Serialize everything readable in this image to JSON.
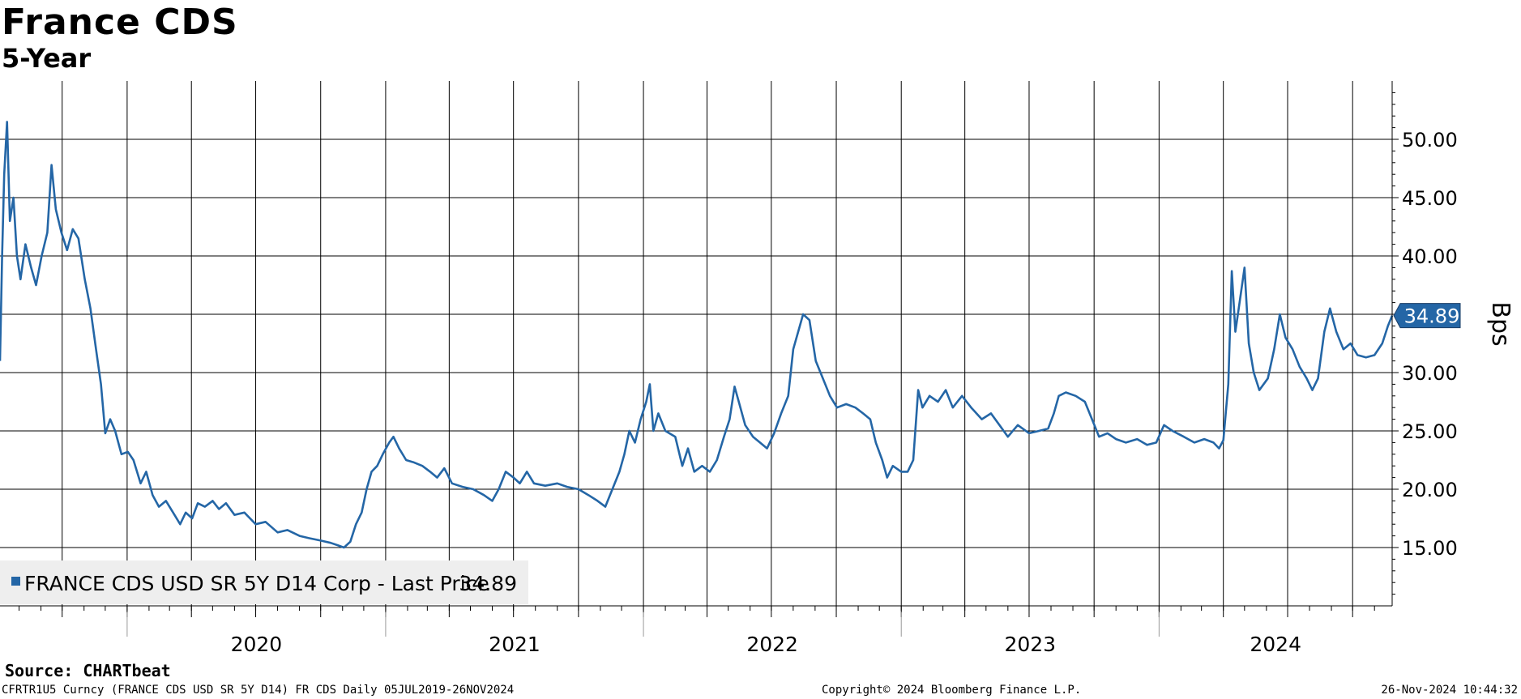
{
  "header": {
    "title": "France CDS",
    "subtitle": "5-Year"
  },
  "footer": {
    "source": "Source: CHARTbeat",
    "ticker_info": "CFRTR1U5 Curncy (FRANCE CDS USD SR 5Y D14) FR CDS  Daily 05JUL2019-26NOV2024",
    "copyright": "Copyright© 2024 Bloomberg Finance L.P.",
    "timestamp": "26-Nov-2024 10:44:32"
  },
  "colors": {
    "series": "#2466a6",
    "grid": "#000000",
    "legend_bg": "#eeeeee",
    "last_price_box": "#2466a6"
  },
  "chart_data": {
    "type": "line",
    "title": "France CDS",
    "subtitle": "5-Year",
    "ylabel": "Bps",
    "xlim": [
      "2019-07-05",
      "2024-11-26"
    ],
    "ylim": [
      10,
      55
    ],
    "yticks": [
      "15.00",
      "20.00",
      "25.00",
      "30.00",
      "35.00",
      "40.00",
      "45.00",
      "50.00"
    ],
    "xtick_labels": [
      "2020",
      "2021",
      "2022",
      "2023",
      "2024"
    ],
    "grid": true,
    "legend_position": "bottom-left",
    "legend": "FRANCE CDS USD SR 5Y D14 Corp - Last Price",
    "last_value_label": "34.89",
    "series": [
      {
        "name": "FRANCE CDS USD SR 5Y D14 Corp - Last Price",
        "last_value": "34.89",
        "points": [
          [
            "2019-07-05",
            31.0
          ],
          [
            "2019-07-08",
            40.0
          ],
          [
            "2019-07-11",
            47.0
          ],
          [
            "2019-07-15",
            51.5
          ],
          [
            "2019-07-19",
            43.0
          ],
          [
            "2019-07-24",
            45.0
          ],
          [
            "2019-07-29",
            40.0
          ],
          [
            "2019-08-03",
            38.0
          ],
          [
            "2019-08-10",
            41.0
          ],
          [
            "2019-08-18",
            39.0
          ],
          [
            "2019-08-25",
            37.5
          ],
          [
            "2019-09-02",
            40.0
          ],
          [
            "2019-09-10",
            42.0
          ],
          [
            "2019-09-16",
            47.8
          ],
          [
            "2019-09-22",
            44.0
          ],
          [
            "2019-09-30",
            42.0
          ],
          [
            "2019-10-08",
            40.5
          ],
          [
            "2019-10-16",
            42.3
          ],
          [
            "2019-10-24",
            41.5
          ],
          [
            "2019-11-02",
            38.0
          ],
          [
            "2019-11-10",
            35.5
          ],
          [
            "2019-11-18",
            32.0
          ],
          [
            "2019-11-25",
            29.0
          ],
          [
            "2019-12-01",
            24.8
          ],
          [
            "2019-12-08",
            26.0
          ],
          [
            "2019-12-15",
            25.0
          ],
          [
            "2019-12-24",
            23.0
          ],
          [
            "2020-01-02",
            23.2
          ],
          [
            "2020-01-10",
            22.5
          ],
          [
            "2020-01-20",
            20.5
          ],
          [
            "2020-01-28",
            21.5
          ],
          [
            "2020-02-06",
            19.5
          ],
          [
            "2020-02-15",
            18.5
          ],
          [
            "2020-02-25",
            19.0
          ],
          [
            "2020-03-06",
            18.0
          ],
          [
            "2020-03-16",
            17.0
          ],
          [
            "2020-03-24",
            18.0
          ],
          [
            "2020-04-02",
            17.5
          ],
          [
            "2020-04-10",
            18.8
          ],
          [
            "2020-04-20",
            18.5
          ],
          [
            "2020-05-01",
            19.0
          ],
          [
            "2020-05-10",
            18.3
          ],
          [
            "2020-05-20",
            18.8
          ],
          [
            "2020-06-01",
            17.8
          ],
          [
            "2020-06-15",
            18.0
          ],
          [
            "2020-07-01",
            17.0
          ],
          [
            "2020-07-15",
            17.2
          ],
          [
            "2020-08-01",
            16.3
          ],
          [
            "2020-08-15",
            16.5
          ],
          [
            "2020-09-01",
            16.0
          ],
          [
            "2020-09-15",
            15.8
          ],
          [
            "2020-10-01",
            15.6
          ],
          [
            "2020-10-15",
            15.4
          ],
          [
            "2020-10-25",
            15.2
          ],
          [
            "2020-11-03",
            15.0
          ],
          [
            "2020-11-12",
            15.5
          ],
          [
            "2020-11-20",
            17.0
          ],
          [
            "2020-11-28",
            18.0
          ],
          [
            "2020-12-05",
            20.0
          ],
          [
            "2020-12-12",
            21.5
          ],
          [
            "2020-12-20",
            22.0
          ],
          [
            "2020-12-28",
            23.0
          ],
          [
            "2021-01-06",
            24.0
          ],
          [
            "2021-01-12",
            24.5
          ],
          [
            "2021-01-20",
            23.5
          ],
          [
            "2021-01-30",
            22.5
          ],
          [
            "2021-02-10",
            22.3
          ],
          [
            "2021-02-22",
            22.0
          ],
          [
            "2021-03-05",
            21.5
          ],
          [
            "2021-03-15",
            21.0
          ],
          [
            "2021-03-25",
            21.8
          ],
          [
            "2021-04-05",
            20.5
          ],
          [
            "2021-04-20",
            20.2
          ],
          [
            "2021-05-05",
            20.0
          ],
          [
            "2021-05-20",
            19.5
          ],
          [
            "2021-06-01",
            19.0
          ],
          [
            "2021-06-10",
            20.0
          ],
          [
            "2021-06-20",
            21.5
          ],
          [
            "2021-07-01",
            21.0
          ],
          [
            "2021-07-10",
            20.5
          ],
          [
            "2021-07-20",
            21.5
          ],
          [
            "2021-07-30",
            20.5
          ],
          [
            "2021-08-15",
            20.3
          ],
          [
            "2021-09-01",
            20.5
          ],
          [
            "2021-09-15",
            20.2
          ],
          [
            "2021-10-01",
            20.0
          ],
          [
            "2021-10-15",
            19.5
          ],
          [
            "2021-10-28",
            19.0
          ],
          [
            "2021-11-08",
            18.5
          ],
          [
            "2021-11-18",
            20.0
          ],
          [
            "2021-11-28",
            21.5
          ],
          [
            "2021-12-05",
            23.0
          ],
          [
            "2021-12-12",
            25.0
          ],
          [
            "2021-12-20",
            24.0
          ],
          [
            "2021-12-28",
            26.0
          ],
          [
            "2022-01-05",
            27.5
          ],
          [
            "2022-01-10",
            29.0
          ],
          [
            "2022-01-15",
            25.0
          ],
          [
            "2022-01-22",
            26.5
          ],
          [
            "2022-02-01",
            25.0
          ],
          [
            "2022-02-15",
            24.5
          ],
          [
            "2022-02-25",
            22.0
          ],
          [
            "2022-03-05",
            23.5
          ],
          [
            "2022-03-14",
            21.5
          ],
          [
            "2022-03-25",
            22.0
          ],
          [
            "2022-04-05",
            21.5
          ],
          [
            "2022-04-15",
            22.5
          ],
          [
            "2022-04-25",
            24.5
          ],
          [
            "2022-05-03",
            26.0
          ],
          [
            "2022-05-10",
            28.8
          ],
          [
            "2022-05-16",
            27.5
          ],
          [
            "2022-05-25",
            25.5
          ],
          [
            "2022-06-05",
            24.5
          ],
          [
            "2022-06-15",
            24.0
          ],
          [
            "2022-06-25",
            23.5
          ],
          [
            "2022-07-05",
            24.8
          ],
          [
            "2022-07-15",
            26.5
          ],
          [
            "2022-07-25",
            28.0
          ],
          [
            "2022-08-01",
            32.0
          ],
          [
            "2022-08-08",
            33.5
          ],
          [
            "2022-08-15",
            35.0
          ],
          [
            "2022-08-24",
            34.5
          ],
          [
            "2022-09-02",
            31.0
          ],
          [
            "2022-09-12",
            29.5
          ],
          [
            "2022-09-22",
            28.0
          ],
          [
            "2022-10-02",
            27.0
          ],
          [
            "2022-10-15",
            27.3
          ],
          [
            "2022-10-28",
            27.0
          ],
          [
            "2022-11-08",
            26.5
          ],
          [
            "2022-11-18",
            26.0
          ],
          [
            "2022-11-26",
            24.0
          ],
          [
            "2022-12-05",
            22.5
          ],
          [
            "2022-12-12",
            21.0
          ],
          [
            "2022-12-20",
            22.0
          ],
          [
            "2023-01-01",
            21.5
          ],
          [
            "2023-01-10",
            21.5
          ],
          [
            "2023-01-18",
            22.5
          ],
          [
            "2023-01-25",
            28.5
          ],
          [
            "2023-01-31",
            27.0
          ],
          [
            "2023-02-10",
            28.0
          ],
          [
            "2023-02-22",
            27.5
          ],
          [
            "2023-03-05",
            28.5
          ],
          [
            "2023-03-15",
            27.0
          ],
          [
            "2023-03-28",
            28.0
          ],
          [
            "2023-04-10",
            27.0
          ],
          [
            "2023-04-25",
            26.0
          ],
          [
            "2023-05-08",
            26.5
          ],
          [
            "2023-05-20",
            25.5
          ],
          [
            "2023-06-01",
            24.5
          ],
          [
            "2023-06-15",
            25.5
          ],
          [
            "2023-07-01",
            24.8
          ],
          [
            "2023-07-15",
            25.0
          ],
          [
            "2023-07-28",
            25.2
          ],
          [
            "2023-08-05",
            26.5
          ],
          [
            "2023-08-12",
            28.0
          ],
          [
            "2023-08-22",
            28.3
          ],
          [
            "2023-09-05",
            28.0
          ],
          [
            "2023-09-18",
            27.5
          ],
          [
            "2023-09-28",
            26.0
          ],
          [
            "2023-10-08",
            24.5
          ],
          [
            "2023-10-20",
            24.8
          ],
          [
            "2023-11-01",
            24.3
          ],
          [
            "2023-11-15",
            24.0
          ],
          [
            "2023-12-01",
            24.3
          ],
          [
            "2023-12-15",
            23.8
          ],
          [
            "2023-12-28",
            24.0
          ],
          [
            "2024-01-08",
            25.5
          ],
          [
            "2024-01-20",
            25.0
          ],
          [
            "2024-02-05",
            24.5
          ],
          [
            "2024-02-20",
            24.0
          ],
          [
            "2024-03-05",
            24.3
          ],
          [
            "2024-03-18",
            24.0
          ],
          [
            "2024-03-26",
            23.5
          ],
          [
            "2024-04-01",
            24.2
          ],
          [
            "2024-04-08",
            29.0
          ],
          [
            "2024-04-13",
            38.7
          ],
          [
            "2024-04-18",
            33.5
          ],
          [
            "2024-04-24",
            36.0
          ],
          [
            "2024-05-01",
            39.0
          ],
          [
            "2024-05-07",
            32.5
          ],
          [
            "2024-05-14",
            30.0
          ],
          [
            "2024-05-22",
            28.5
          ],
          [
            "2024-06-03",
            29.5
          ],
          [
            "2024-06-12",
            32.0
          ],
          [
            "2024-06-20",
            35.0
          ],
          [
            "2024-06-28",
            33.0
          ],
          [
            "2024-07-08",
            32.0
          ],
          [
            "2024-07-18",
            30.5
          ],
          [
            "2024-07-28",
            29.5
          ],
          [
            "2024-08-05",
            28.5
          ],
          [
            "2024-08-13",
            29.5
          ],
          [
            "2024-08-22",
            33.5
          ],
          [
            "2024-08-30",
            35.5
          ],
          [
            "2024-09-08",
            33.5
          ],
          [
            "2024-09-18",
            32.0
          ],
          [
            "2024-09-28",
            32.5
          ],
          [
            "2024-10-08",
            31.5
          ],
          [
            "2024-10-20",
            31.3
          ],
          [
            "2024-11-01",
            31.5
          ],
          [
            "2024-11-12",
            32.5
          ],
          [
            "2024-11-20",
            34.0
          ],
          [
            "2024-11-26",
            34.89
          ]
        ]
      }
    ]
  }
}
